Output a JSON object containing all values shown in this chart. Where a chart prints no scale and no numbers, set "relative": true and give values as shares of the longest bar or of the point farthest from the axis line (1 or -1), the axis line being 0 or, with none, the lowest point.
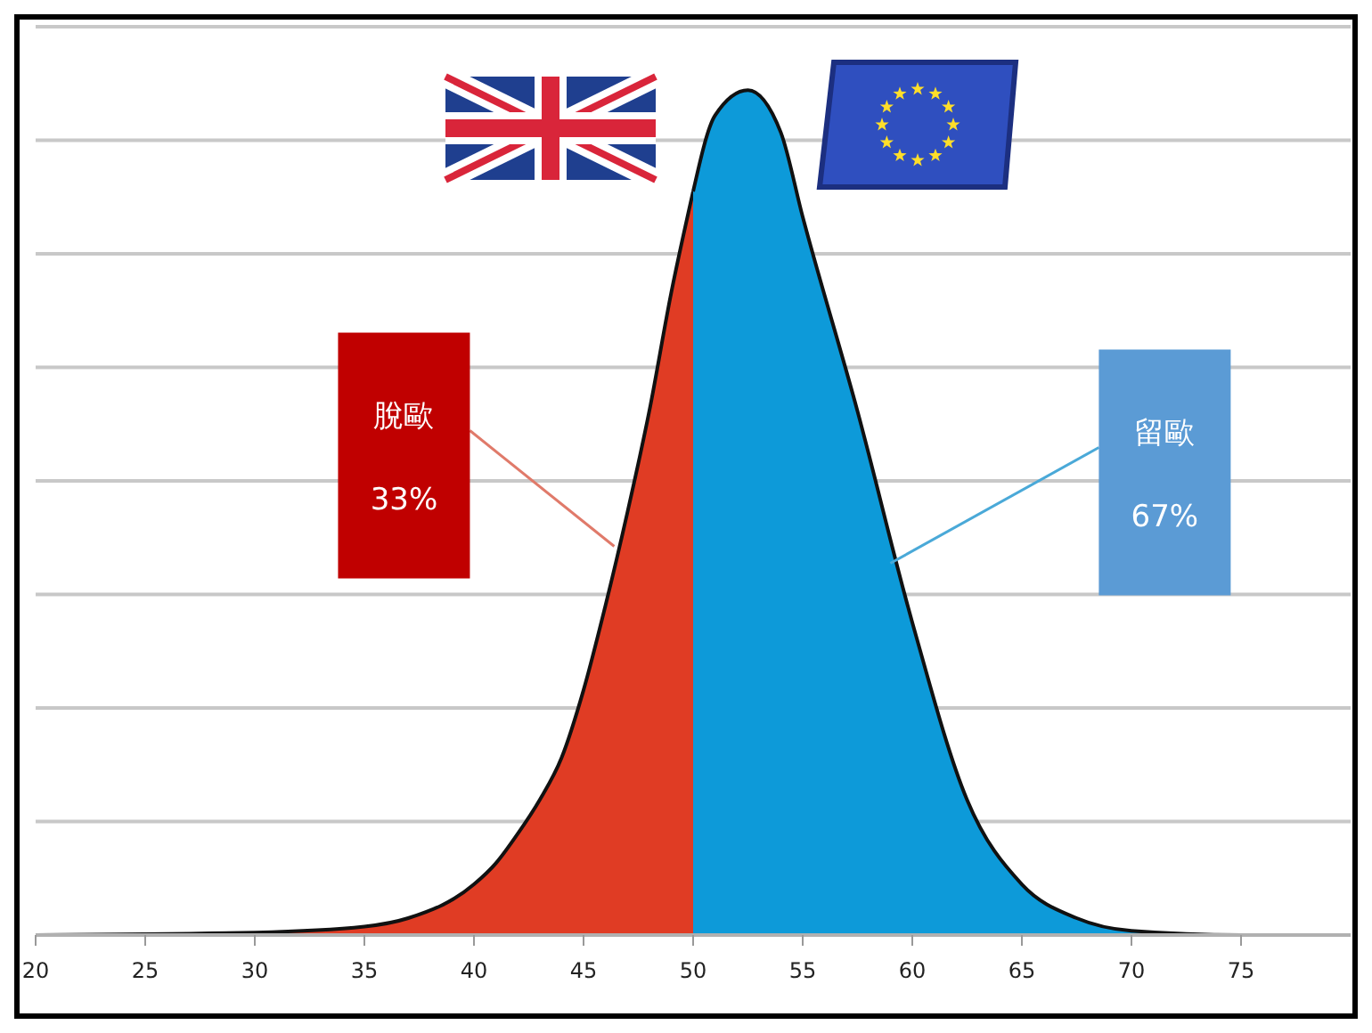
{
  "chart_data": {
    "type": "area",
    "relative": true,
    "xlim": [
      20,
      80
    ],
    "xticks": [
      20,
      25,
      30,
      35,
      40,
      45,
      50,
      55,
      60,
      65,
      70,
      75
    ],
    "grid": "y",
    "series": [
      {
        "color": "#e03c24",
        "x": [
          20,
          30,
          35,
          37,
          40,
          41,
          42,
          43,
          44,
          45,
          46,
          47,
          48,
          49,
          50
        ],
        "values": [
          0,
          0.003,
          0.01,
          0.02,
          0.06,
          0.085,
          0.12,
          0.16,
          0.21,
          0.29,
          0.39,
          0.5,
          0.62,
          0.76,
          0.88
        ]
      },
      {
        "color": "#0d9ad9",
        "x": [
          50,
          51,
          52.5,
          54,
          55,
          57.5,
          60,
          62.5,
          65,
          67.5,
          70,
          75,
          80
        ],
        "values": [
          0.88,
          0.97,
          1,
          0.95,
          0.85,
          0.62,
          0.37,
          0.16,
          0.06,
          0.02,
          0.005,
          0,
          0
        ]
      }
    ],
    "annotations": [
      {
        "text": "脫歐",
        "x": 46.4,
        "y": 0.46
      },
      "33%",
      {
        "text": "留歐",
        "x": 59,
        "y": 0.44
      },
      "67%"
    ]
  }
}
